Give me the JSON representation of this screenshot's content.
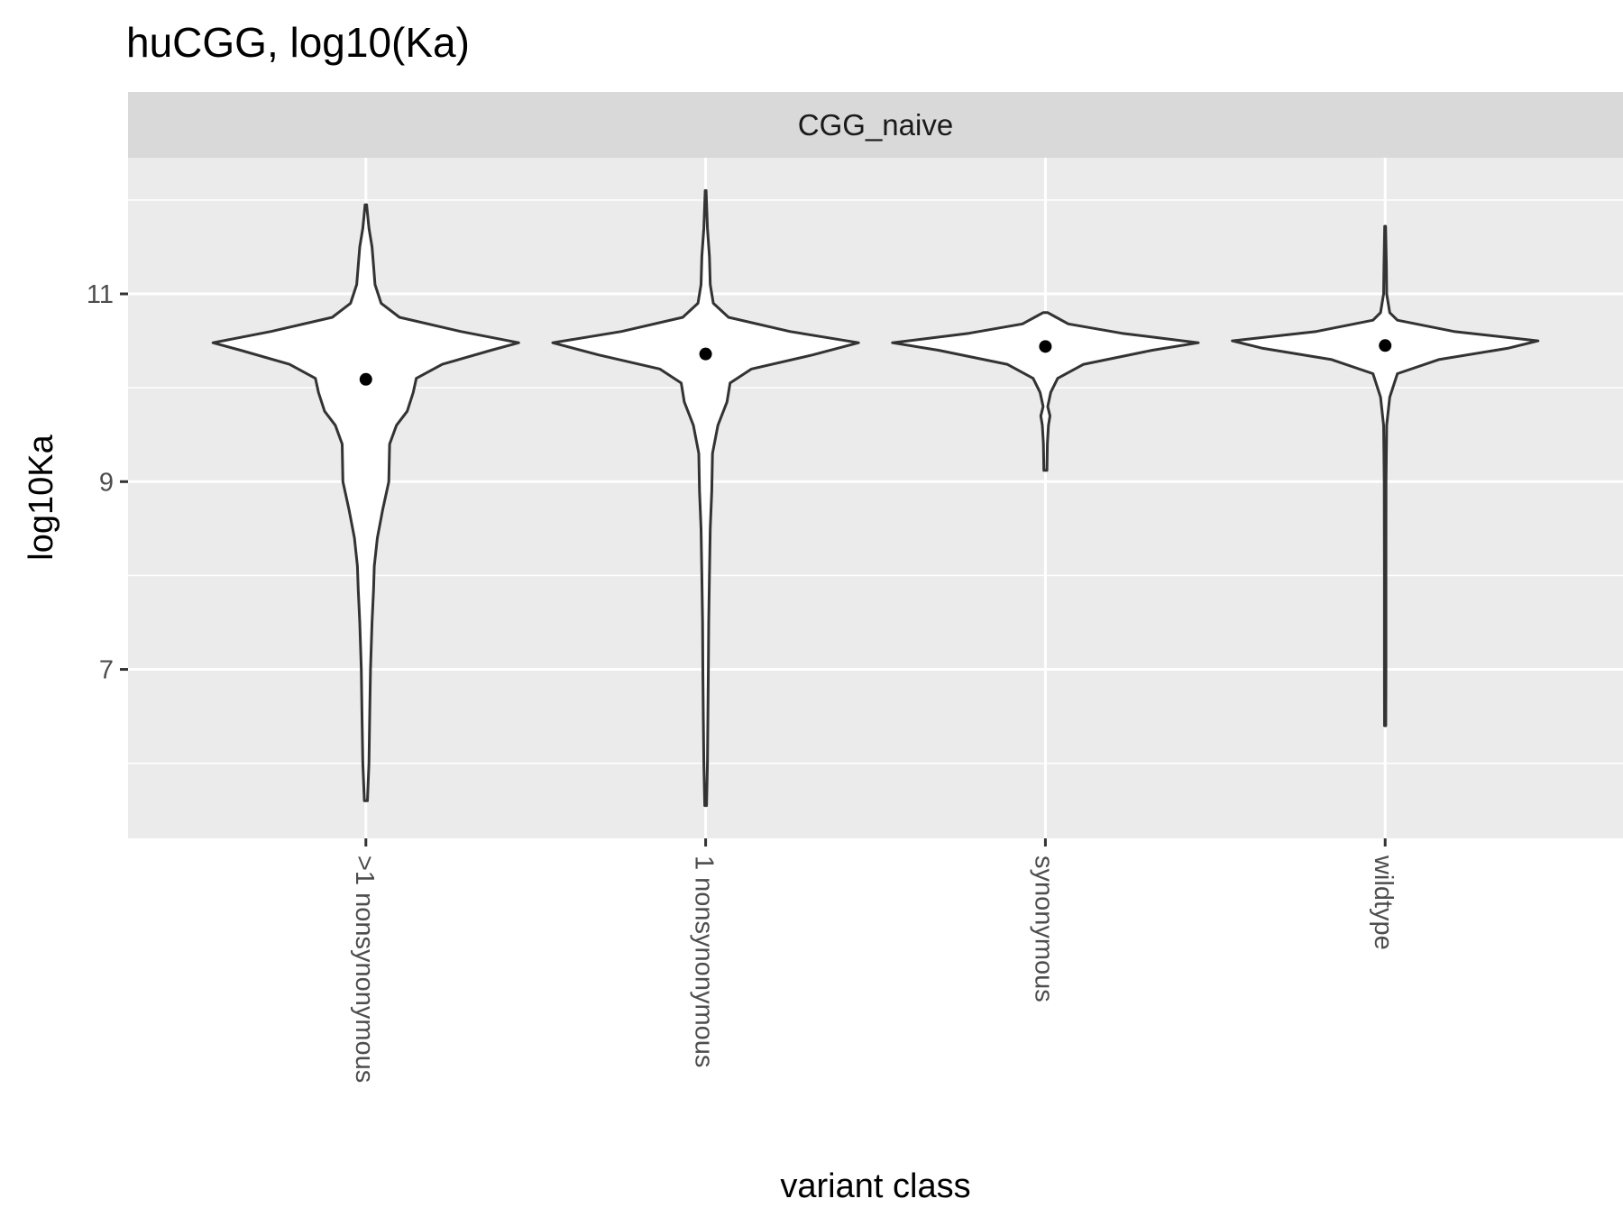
{
  "chart_data": {
    "type": "violin",
    "title": "huCGG, log10(Ka)",
    "facet": "CGG_naive",
    "xlabel": "variant class",
    "ylabel": "log10Ka",
    "ylim": [
      5.2,
      12.45
    ],
    "y_ticks": [
      7,
      9,
      11
    ],
    "y_minor_ticks": [
      6,
      8,
      10,
      12
    ],
    "grid": true,
    "categories": [
      ">1 nonsynonymous",
      "1 nonsynonymous",
      "synonymous",
      "wildtype"
    ],
    "series": [
      {
        "category": ">1 nonsynonymous",
        "mean": 10.09,
        "min": 5.6,
        "max": 11.95,
        "density_profile": [
          [
            5.6,
            0.01
          ],
          [
            6.0,
            0.02
          ],
          [
            6.5,
            0.025
          ],
          [
            7.0,
            0.03
          ],
          [
            7.5,
            0.04
          ],
          [
            7.85,
            0.05
          ],
          [
            8.1,
            0.055
          ],
          [
            8.4,
            0.075
          ],
          [
            8.7,
            0.11
          ],
          [
            9.0,
            0.15
          ],
          [
            9.4,
            0.155
          ],
          [
            9.6,
            0.2
          ],
          [
            9.75,
            0.27
          ],
          [
            9.95,
            0.31
          ],
          [
            10.1,
            0.33
          ],
          [
            10.25,
            0.5
          ],
          [
            10.4,
            0.82
          ],
          [
            10.48,
            1.0
          ],
          [
            10.6,
            0.62
          ],
          [
            10.75,
            0.22
          ],
          [
            10.9,
            0.1
          ],
          [
            11.1,
            0.06
          ],
          [
            11.3,
            0.05
          ],
          [
            11.5,
            0.04
          ],
          [
            11.7,
            0.02
          ],
          [
            11.95,
            0.005
          ]
        ]
      },
      {
        "category": "1 nonsynonymous",
        "mean": 10.36,
        "min": 5.55,
        "max": 12.1,
        "density_profile": [
          [
            5.55,
            0.006
          ],
          [
            6.0,
            0.012
          ],
          [
            6.5,
            0.015
          ],
          [
            7.0,
            0.018
          ],
          [
            7.5,
            0.02
          ],
          [
            8.0,
            0.025
          ],
          [
            8.5,
            0.03
          ],
          [
            8.9,
            0.04
          ],
          [
            9.3,
            0.045
          ],
          [
            9.6,
            0.08
          ],
          [
            9.85,
            0.14
          ],
          [
            10.05,
            0.16
          ],
          [
            10.2,
            0.3
          ],
          [
            10.35,
            0.7
          ],
          [
            10.48,
            1.0
          ],
          [
            10.6,
            0.55
          ],
          [
            10.75,
            0.15
          ],
          [
            10.9,
            0.05
          ],
          [
            11.1,
            0.03
          ],
          [
            11.4,
            0.025
          ],
          [
            11.7,
            0.012
          ],
          [
            12.1,
            0.003
          ]
        ]
      },
      {
        "category": "synonymous",
        "mean": 10.44,
        "min": 9.12,
        "max": 10.8,
        "density_profile": [
          [
            9.12,
            0.01
          ],
          [
            9.4,
            0.013
          ],
          [
            9.6,
            0.02
          ],
          [
            9.7,
            0.03
          ],
          [
            9.8,
            0.015
          ],
          [
            9.95,
            0.035
          ],
          [
            10.1,
            0.08
          ],
          [
            10.25,
            0.25
          ],
          [
            10.4,
            0.7
          ],
          [
            10.48,
            1.0
          ],
          [
            10.58,
            0.5
          ],
          [
            10.68,
            0.15
          ],
          [
            10.76,
            0.06
          ],
          [
            10.8,
            0.015
          ]
        ]
      },
      {
        "category": "wildtype",
        "mean": 10.45,
        "min": 6.4,
        "max": 11.72,
        "density_profile": [
          [
            6.4,
            0.004
          ],
          [
            7.0,
            0.005
          ],
          [
            8.0,
            0.005
          ],
          [
            9.0,
            0.006
          ],
          [
            9.6,
            0.01
          ],
          [
            9.9,
            0.03
          ],
          [
            10.15,
            0.08
          ],
          [
            10.3,
            0.35
          ],
          [
            10.42,
            0.8
          ],
          [
            10.5,
            1.0
          ],
          [
            10.6,
            0.45
          ],
          [
            10.72,
            0.08
          ],
          [
            10.8,
            0.03
          ],
          [
            11.0,
            0.01
          ],
          [
            11.3,
            0.008
          ],
          [
            11.72,
            0.003
          ]
        ]
      }
    ]
  }
}
